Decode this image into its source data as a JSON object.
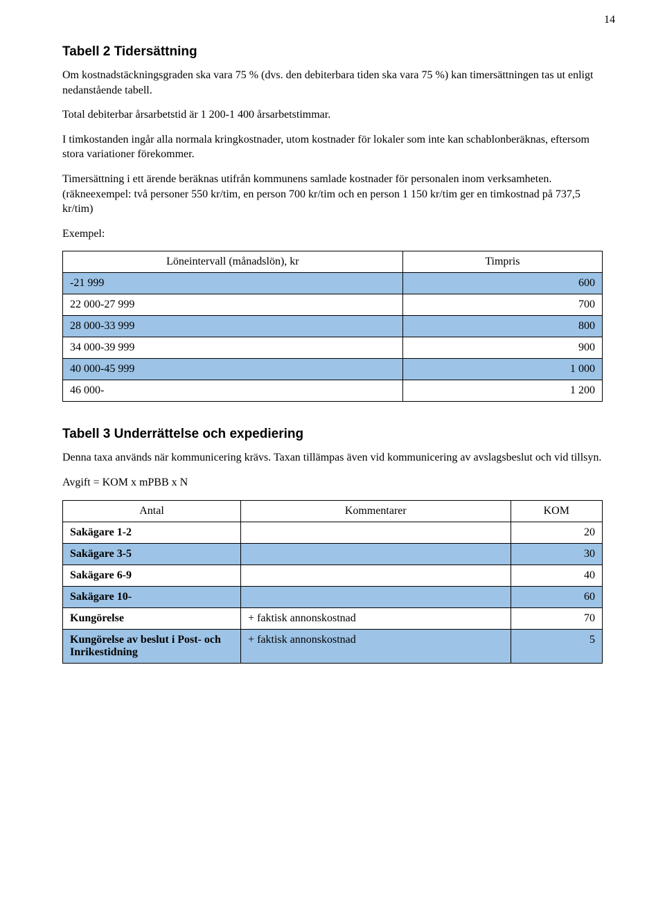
{
  "page_number": "14",
  "shaded_bg": "#9dc3e6",
  "table_border": "#000000",
  "section1": {
    "title": "Tabell 2 Tidersättning",
    "p1": "Om kostnadstäckningsgraden ska vara 75 % (dvs. den debiterbara tiden ska vara 75 %) kan timersättningen tas ut enligt nedanstående tabell.",
    "p2": "Total debiterbar årsarbetstid är 1 200-1 400 årsarbetstimmar.",
    "p3": "I timkostanden ingår alla normala kringkostnader, utom kostnader för lokaler som inte kan schablonberäknas, eftersom stora variationer förekommer.",
    "p4": "Timersättning i ett ärende beräknas utifrån kommunens samlade kostnader för personalen inom verksamheten. (räkneexempel: två personer 550 kr/tim, en person 700 kr/tim och en person 1 150 kr/tim ger en timkostnad på 737,5 kr/tim)",
    "p5": "Exempel:",
    "headers": [
      "Löneintervall (månadslön), kr",
      "Timpris"
    ],
    "rows": [
      {
        "shaded": true,
        "label": "-21 999",
        "value": "600"
      },
      {
        "shaded": false,
        "label": "22 000-27 999",
        "value": "700"
      },
      {
        "shaded": true,
        "label": "28 000-33 999",
        "value": "800"
      },
      {
        "shaded": false,
        "label": "34 000-39 999",
        "value": "900"
      },
      {
        "shaded": true,
        "label": "40 000-45 999",
        "value": "1 000"
      },
      {
        "shaded": false,
        "label": "46 000-",
        "value": "1 200"
      }
    ]
  },
  "section2": {
    "title": "Tabell 3 Underrättelse och expediering",
    "p1": "Denna taxa används när kommunicering krävs. Taxan tillämpas även vid kommunicering av avslagsbeslut och vid tillsyn.",
    "p2": "Avgift = KOM x mPBB x N",
    "headers": [
      "Antal",
      "Kommentarer",
      "KOM"
    ],
    "rows": [
      {
        "shaded": false,
        "bold": true,
        "label": "Sakägare 1-2",
        "comment": "",
        "value": "20"
      },
      {
        "shaded": true,
        "bold": true,
        "label": "Sakägare 3-5",
        "comment": "",
        "value": "30"
      },
      {
        "shaded": false,
        "bold": true,
        "label": "Sakägare 6-9",
        "comment": "",
        "value": "40"
      },
      {
        "shaded": true,
        "bold": true,
        "label": "Sakägare 10-",
        "comment": "",
        "value": "60"
      },
      {
        "shaded": false,
        "bold": true,
        "label": "Kungörelse",
        "comment": "+ faktisk annonskostnad",
        "value": "70"
      },
      {
        "shaded": true,
        "bold": true,
        "label": "Kungörelse av beslut i Post- och Inrikestidning",
        "comment": "+ faktisk annonskostnad",
        "value": "5"
      }
    ]
  }
}
